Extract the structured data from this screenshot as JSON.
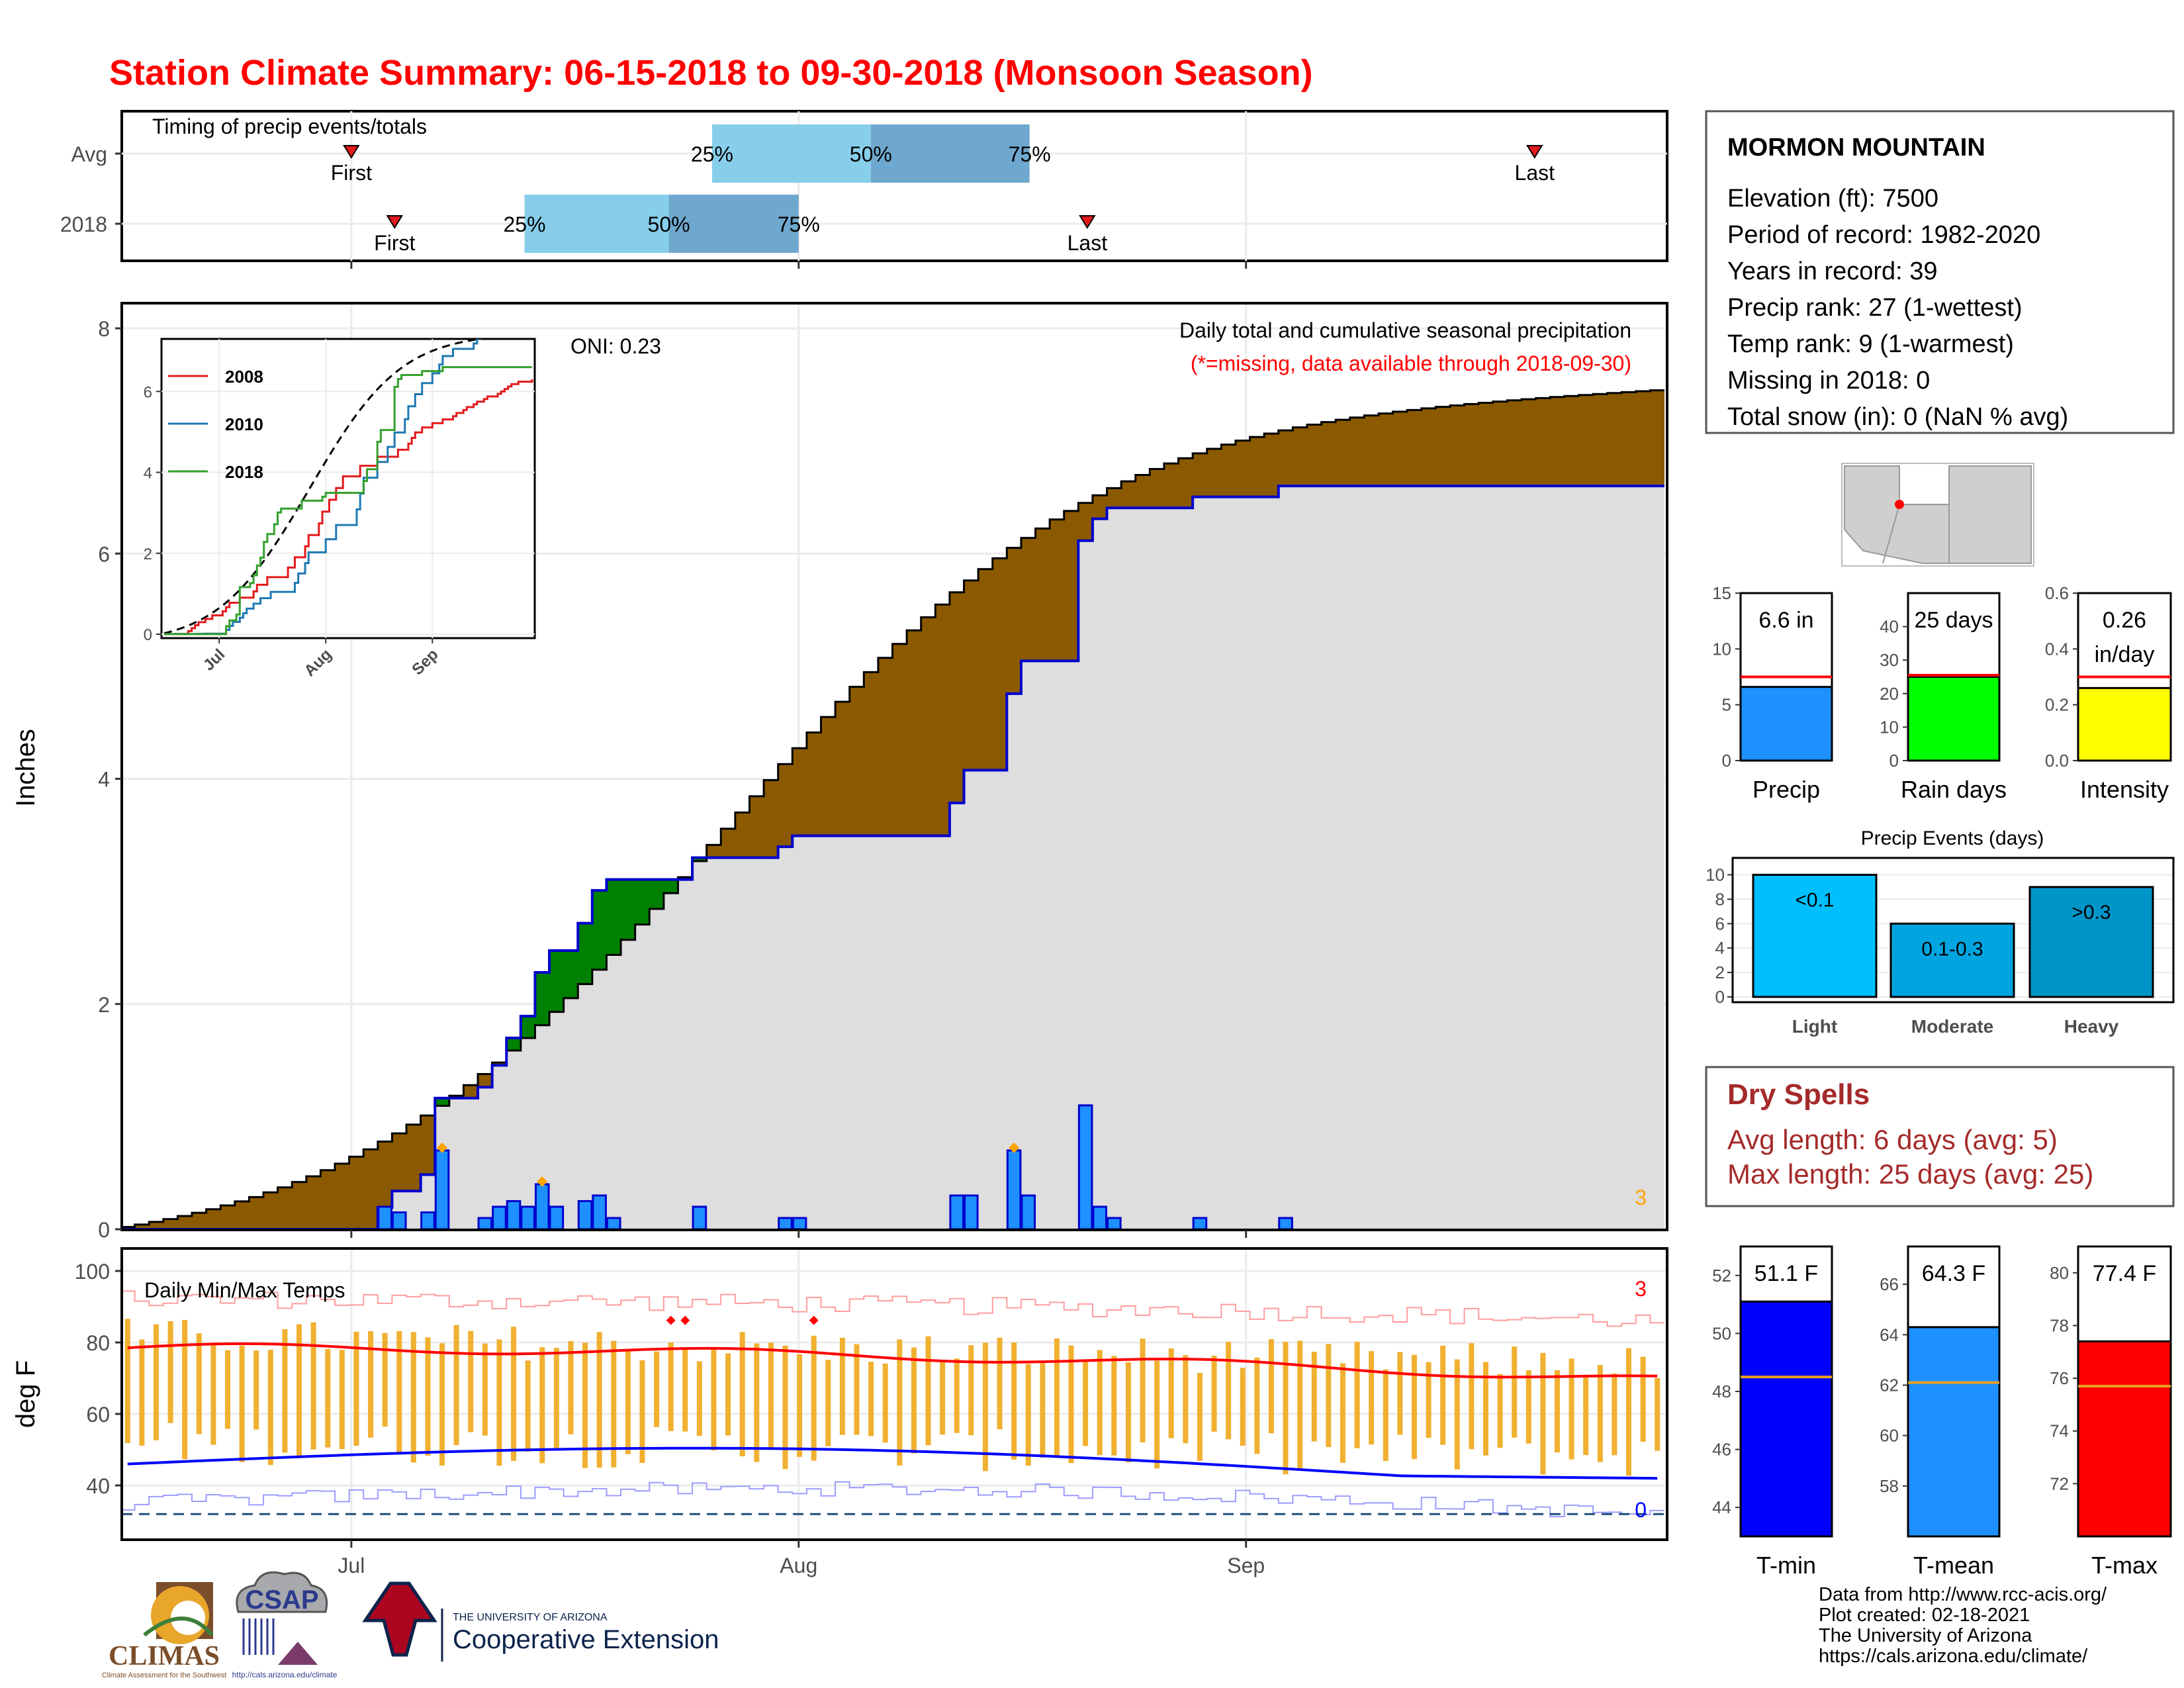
{
  "title": "Station Climate Summary: 06-15-2018 to 09-30-2018 (Monsoon Season)",
  "timing": {
    "label": "Timing of precip events/totals",
    "rows": [
      {
        "name": "Avg",
        "first": "07-01",
        "p25": "07-26",
        "p50": "08-06",
        "p75": "08-17",
        "last": "09-21"
      },
      {
        "name": "2018",
        "first": "07-04",
        "p25": "07-13",
        "p50": "07-23",
        "p75": "08-01",
        "last": "08-21"
      }
    ],
    "first_label": "First",
    "last_label": "Last",
    "p25_label": "25%",
    "p50_label": "50%",
    "p75_label": "75%"
  },
  "station": {
    "name": "MORMON MOUNTAIN",
    "lines": [
      "Elevation (ft): 7500",
      "Period of record: 1982-2020",
      "Years in record: 39",
      "Precip rank: 27 (1-wettest)",
      "Temp rank: 9 (1-warmest)",
      "Missing in 2018: 0",
      "Total snow (in): 0 (NaN % avg)"
    ]
  },
  "precip_panel": {
    "ylabel": "Inches",
    "oni": "ONI: 0.23",
    "note1": "Daily total and cumulative seasonal precipitation",
    "note2": "(*=missing, data available through 2018-09-30)",
    "count_label": "3",
    "x_ticks": [
      "Jul",
      "Aug",
      "Sep"
    ],
    "y_ticks": [
      "0",
      "2",
      "4",
      "6",
      "8"
    ]
  },
  "inset": {
    "legend": [
      {
        "name": "2008",
        "color": "#e31a1c"
      },
      {
        "name": "2010",
        "color": "#1f78b4"
      },
      {
        "name": "2018",
        "color": "#33a02c"
      }
    ],
    "y_ticks": [
      "0",
      "2",
      "4",
      "6"
    ],
    "x_ticks": [
      "Jul",
      "Aug",
      "Sep"
    ]
  },
  "bars_top": [
    {
      "label": "Precip",
      "value_text": "6.6 in",
      "value": 6.6,
      "avg": 7.5,
      "ylim": [
        0,
        15
      ],
      "ticks": [
        "0",
        "5",
        "10",
        "15"
      ],
      "color": "#1e90ff"
    },
    {
      "label": "Rain days",
      "value_text": "25 days",
      "value": 25,
      "avg": 25.5,
      "ylim": [
        0,
        50
      ],
      "ticks": [
        "0",
        "10",
        "20",
        "30",
        "40"
      ],
      "color": "#00ff00"
    },
    {
      "label": "Intensity",
      "value_text": "0.26\nin/day",
      "value": 0.26,
      "avg": 0.3,
      "ylim": [
        0,
        0.6
      ],
      "ticks": [
        "0.0",
        "0.2",
        "0.4",
        "0.6"
      ],
      "color": "#ffff00"
    }
  ],
  "events": {
    "title": "Precip Events (days)",
    "categories": [
      "Light",
      "Moderate",
      "Heavy"
    ],
    "values": [
      10,
      6,
      9
    ],
    "bar_labels": [
      "<0.1",
      "0.1-0.3",
      ">0.3"
    ],
    "ticks": [
      "0",
      "2",
      "4",
      "6",
      "8",
      "10"
    ],
    "colors": [
      "#00bfff",
      "#00a5e0",
      "#0095c8"
    ]
  },
  "dry_spells": {
    "title": "Dry Spells",
    "avg_line": "Avg length: 6 days (avg: 5)",
    "max_line": "Max length: 25 days (avg: 25)"
  },
  "temp_panel": {
    "ylabel": "deg F",
    "label": "Daily Min/Max Temps",
    "hot_count": "3",
    "cold_count": "0",
    "y_ticks": [
      "40",
      "60",
      "80",
      "100"
    ]
  },
  "temp_bars": [
    {
      "label": "T-min",
      "value_text": "51.1 F",
      "value": 51.1,
      "avg": 48.5,
      "ylim": [
        43,
        53
      ],
      "ticks": [
        "44",
        "46",
        "48",
        "50",
        "52"
      ],
      "color": "#0000ff"
    },
    {
      "label": "T-mean",
      "value_text": "64.3 F",
      "value": 64.3,
      "avg": 62.1,
      "ylim": [
        56,
        67.5
      ],
      "ticks": [
        "58",
        "60",
        "62",
        "64",
        "66"
      ],
      "color": "#1e90ff"
    },
    {
      "label": "T-max",
      "value_text": "77.4 F",
      "value": 77.4,
      "avg": 75.7,
      "ylim": [
        70,
        81
      ],
      "ticks": [
        "72",
        "74",
        "76",
        "78",
        "80"
      ],
      "color": "#ff0000"
    }
  ],
  "credits": [
    "Data from http://www.rcc-acis.org/",
    "Plot created: 02-18-2021",
    "The University of Arizona",
    "https://cals.arizona.edu/climate/"
  ],
  "logos": {
    "climas": "CLIMAS",
    "climas_sub": "Climate Assessment for the Southwest",
    "csap": "CSAP",
    "csap_sub": "http://cals.arizona.edu/climate",
    "ua_top": "THE UNIVERSITY OF ARIZONA",
    "ua_bottom": "Cooperative Extension"
  },
  "colors": {
    "title": "#ff0000",
    "above_avg": "#008000",
    "below_avg": "#8b5a00",
    "avg_fill": "#dedede",
    "daily_bar": "#1e90ff",
    "tmax": "#ff0000",
    "tmin": "#0000ff",
    "temp_range": "#f0b030",
    "dry_spell": "#a52a2a"
  },
  "chart_data": {
    "type": "area",
    "title": "Daily total and cumulative seasonal precipitation",
    "ylabel": "Inches",
    "ylim": [
      0,
      8
    ],
    "x_range": [
      "2018-06-15",
      "2018-09-30"
    ],
    "cumulative_2018_final": 6.6,
    "cumulative_avg_final": 7.45,
    "daily_precip_2018": [
      {
        "date": "2018-07-03",
        "value": 0.2
      },
      {
        "date": "2018-07-04",
        "value": 0.15
      },
      {
        "date": "2018-07-06",
        "value": 0.15
      },
      {
        "date": "2018-07-07",
        "value": 0.7
      },
      {
        "date": "2018-07-10",
        "value": 0.1
      },
      {
        "date": "2018-07-11",
        "value": 0.2
      },
      {
        "date": "2018-07-12",
        "value": 0.25
      },
      {
        "date": "2018-07-13",
        "value": 0.2
      },
      {
        "date": "2018-07-14",
        "value": 0.4
      },
      {
        "date": "2018-07-15",
        "value": 0.2
      },
      {
        "date": "2018-07-17",
        "value": 0.25
      },
      {
        "date": "2018-07-18",
        "value": 0.3
      },
      {
        "date": "2018-07-19",
        "value": 0.1
      },
      {
        "date": "2018-07-25",
        "value": 0.2
      },
      {
        "date": "2018-07-31",
        "value": 0.1
      },
      {
        "date": "2018-08-01",
        "value": 0.1
      },
      {
        "date": "2018-08-12",
        "value": 0.3
      },
      {
        "date": "2018-08-13",
        "value": 0.3
      },
      {
        "date": "2018-08-16",
        "value": 0.7
      },
      {
        "date": "2018-08-17",
        "value": 0.3
      },
      {
        "date": "2018-08-21",
        "value": 1.1
      },
      {
        "date": "2018-08-22",
        "value": 0.2
      },
      {
        "date": "2018-08-23",
        "value": 0.1
      },
      {
        "date": "2018-08-29",
        "value": 0.1
      },
      {
        "date": "2018-09-04",
        "value": 0.1
      }
    ]
  }
}
